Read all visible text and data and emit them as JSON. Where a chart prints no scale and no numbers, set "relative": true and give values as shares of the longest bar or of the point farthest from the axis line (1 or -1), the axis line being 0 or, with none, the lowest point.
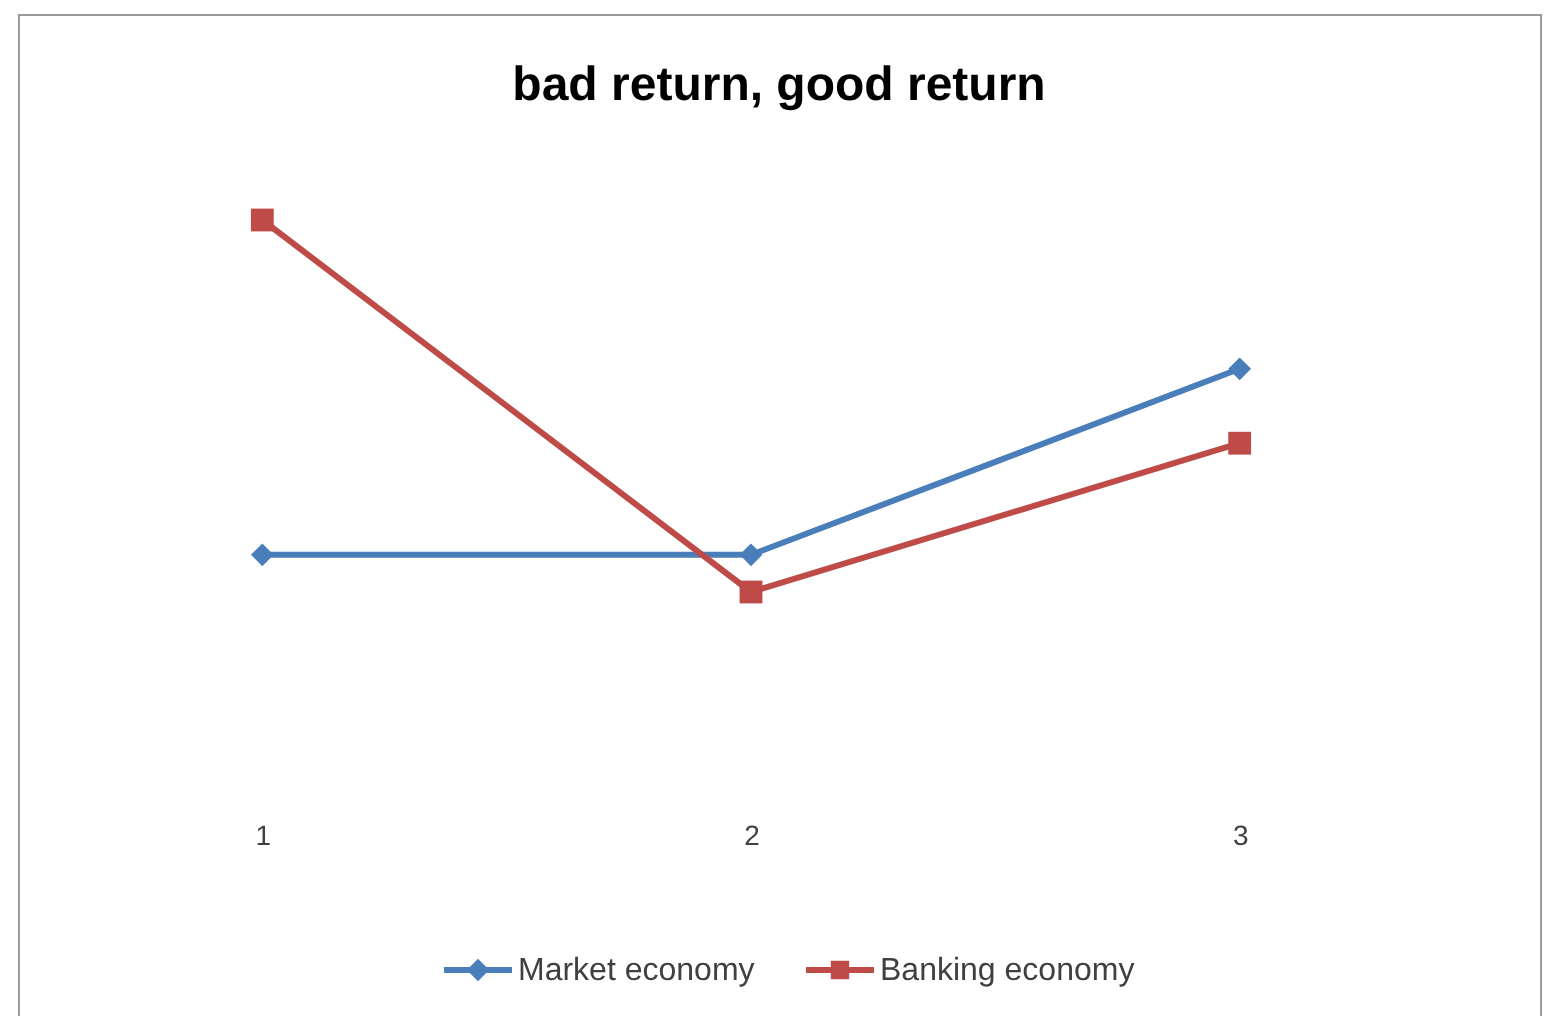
{
  "chart_data": {
    "type": "line",
    "title": "bad return, good return",
    "categories": [
      "1",
      "2",
      "3"
    ],
    "relative": true,
    "legend": "bottom",
    "series": [
      {
        "name": "Market economy",
        "color": "#4a7ebb",
        "marker": "diamond",
        "values": [
          0.1,
          0.1,
          0.6
        ]
      },
      {
        "name": "Banking economy",
        "color": "#be4b48",
        "marker": "square",
        "values": [
          1,
          0,
          0.4
        ]
      }
    ]
  }
}
